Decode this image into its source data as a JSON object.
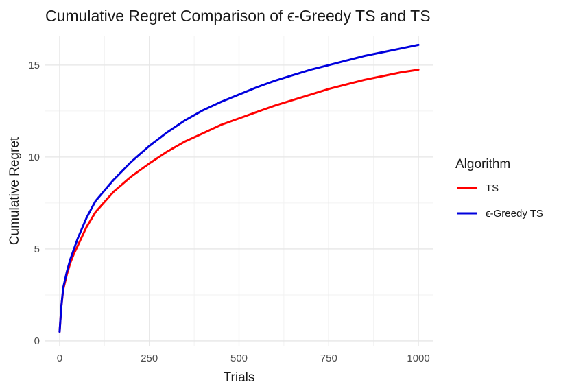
{
  "chart_data": {
    "type": "line",
    "title": "Cumulative Regret Comparison of ϵ-Greedy TS and TS",
    "xlabel": "Trials",
    "ylabel": "Cumulative Regret",
    "xlim": [
      -40,
      1040
    ],
    "ylim": [
      -0.3,
      16.6
    ],
    "xticks": [
      0,
      250,
      500,
      750,
      1000
    ],
    "xtick_labels": [
      "0",
      "250",
      "500",
      "750",
      "1000"
    ],
    "yticks": [
      0,
      5,
      10,
      15
    ],
    "ytick_labels": [
      "0",
      "5",
      "10",
      "15"
    ],
    "grid": true,
    "legend": {
      "title": "Algorithm",
      "position": "right"
    },
    "x": [
      0,
      5,
      10,
      20,
      30,
      40,
      50,
      75,
      100,
      150,
      200,
      250,
      300,
      350,
      400,
      450,
      500,
      550,
      600,
      650,
      700,
      750,
      800,
      850,
      900,
      950,
      1000
    ],
    "series": [
      {
        "name": "TS",
        "color": "#ff0000",
        "values": [
          0.5,
          1.9,
          2.8,
          3.6,
          4.25,
          4.75,
          5.15,
          6.2,
          7.0,
          8.1,
          8.95,
          9.65,
          10.3,
          10.85,
          11.3,
          11.75,
          12.1,
          12.45,
          12.8,
          13.1,
          13.4,
          13.7,
          13.95,
          14.2,
          14.4,
          14.6,
          14.75
        ]
      },
      {
        "name": "ϵ-Greedy TS",
        "color": "#0000dd",
        "values": [
          0.5,
          1.9,
          2.9,
          3.75,
          4.45,
          5.0,
          5.55,
          6.7,
          7.6,
          8.75,
          9.75,
          10.6,
          11.35,
          12.0,
          12.55,
          13.0,
          13.4,
          13.8,
          14.15,
          14.45,
          14.75,
          15.0,
          15.25,
          15.5,
          15.7,
          15.9,
          16.1
        ]
      }
    ]
  }
}
